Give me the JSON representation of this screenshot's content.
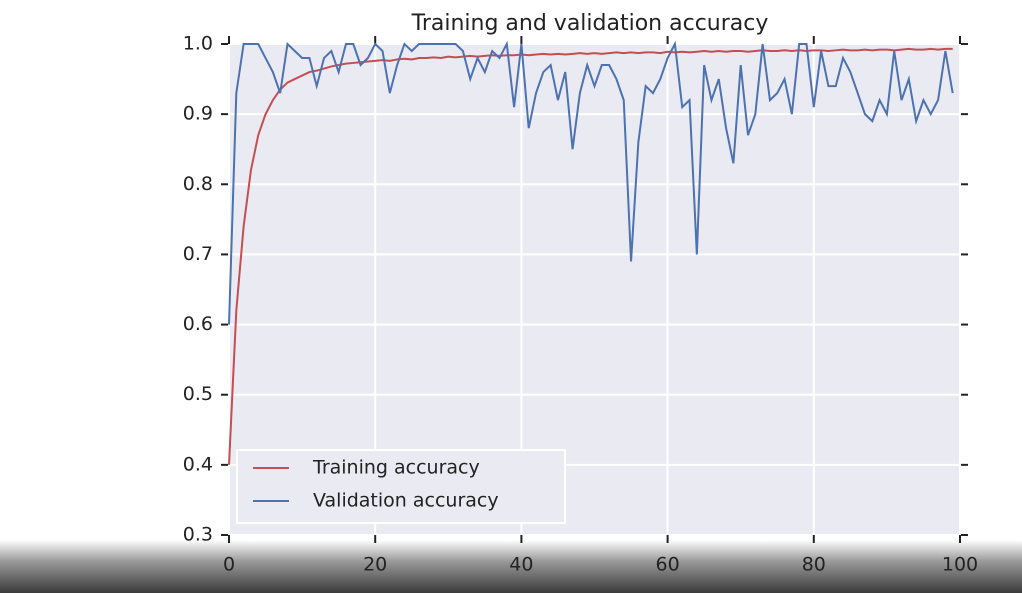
{
  "chart_data": {
    "type": "line",
    "title": "Training and validation accuracy",
    "x": [
      0,
      1,
      2,
      3,
      4,
      5,
      6,
      7,
      8,
      9,
      10,
      11,
      12,
      13,
      14,
      15,
      16,
      17,
      18,
      19,
      20,
      21,
      22,
      23,
      24,
      25,
      26,
      27,
      28,
      29,
      30,
      31,
      32,
      33,
      34,
      35,
      36,
      37,
      38,
      39,
      40,
      41,
      42,
      43,
      44,
      45,
      46,
      47,
      48,
      49,
      50,
      51,
      52,
      53,
      54,
      55,
      56,
      57,
      58,
      59,
      60,
      61,
      62,
      63,
      64,
      65,
      66,
      67,
      68,
      69,
      70,
      71,
      72,
      73,
      74,
      75,
      76,
      77,
      78,
      79,
      80,
      81,
      82,
      83,
      84,
      85,
      86,
      87,
      88,
      89,
      90,
      91,
      92,
      93,
      94,
      95,
      96,
      97,
      98,
      99
    ],
    "series": [
      {
        "name": "Training accuracy",
        "color": "#c44e52",
        "values": [
          0.4,
          0.62,
          0.74,
          0.82,
          0.87,
          0.9,
          0.92,
          0.935,
          0.945,
          0.95,
          0.955,
          0.96,
          0.962,
          0.965,
          0.968,
          0.97,
          0.972,
          0.973,
          0.974,
          0.975,
          0.976,
          0.977,
          0.976,
          0.978,
          0.979,
          0.978,
          0.98,
          0.98,
          0.981,
          0.98,
          0.982,
          0.981,
          0.982,
          0.983,
          0.982,
          0.983,
          0.984,
          0.983,
          0.984,
          0.984,
          0.985,
          0.984,
          0.985,
          0.986,
          0.985,
          0.986,
          0.985,
          0.986,
          0.987,
          0.986,
          0.987,
          0.986,
          0.987,
          0.988,
          0.987,
          0.988,
          0.987,
          0.988,
          0.988,
          0.987,
          0.989,
          0.988,
          0.989,
          0.988,
          0.989,
          0.99,
          0.989,
          0.99,
          0.989,
          0.99,
          0.99,
          0.989,
          0.99,
          0.991,
          0.99,
          0.99,
          0.991,
          0.99,
          0.991,
          0.99,
          0.991,
          0.991,
          0.99,
          0.991,
          0.992,
          0.991,
          0.991,
          0.992,
          0.991,
          0.992,
          0.992,
          0.991,
          0.992,
          0.993,
          0.992,
          0.992,
          0.993,
          0.992,
          0.993,
          0.993
        ]
      },
      {
        "name": "Validation accuracy",
        "color": "#4c72b0",
        "values": [
          0.6,
          0.93,
          1.0,
          1.0,
          1.0,
          0.98,
          0.96,
          0.93,
          1.0,
          0.99,
          0.98,
          0.98,
          0.94,
          0.98,
          0.99,
          0.96,
          1.0,
          1.0,
          0.97,
          0.98,
          1.0,
          0.99,
          0.93,
          0.97,
          1.0,
          0.99,
          1.0,
          1.0,
          1.0,
          1.0,
          1.0,
          1.0,
          0.99,
          0.95,
          0.98,
          0.96,
          0.99,
          0.98,
          1.0,
          0.91,
          1.0,
          0.88,
          0.93,
          0.96,
          0.97,
          0.92,
          0.96,
          0.85,
          0.93,
          0.97,
          0.94,
          0.97,
          0.97,
          0.95,
          0.92,
          0.69,
          0.86,
          0.94,
          0.93,
          0.95,
          0.98,
          1.0,
          0.91,
          0.92,
          0.7,
          0.97,
          0.92,
          0.95,
          0.88,
          0.83,
          0.97,
          0.87,
          0.9,
          1.0,
          0.92,
          0.93,
          0.95,
          0.9,
          1.0,
          1.0,
          0.91,
          0.99,
          0.94,
          0.94,
          0.98,
          0.96,
          0.93,
          0.9,
          0.89,
          0.92,
          0.9,
          0.99,
          0.92,
          0.95,
          0.89,
          0.92,
          0.9,
          0.92,
          0.99,
          0.93
        ]
      }
    ],
    "xlim": [
      0,
      100
    ],
    "xticks": [
      0,
      20,
      40,
      60,
      80,
      100
    ],
    "ylim": [
      0.3,
      1.0
    ],
    "yticks": [
      0.3,
      0.4,
      0.5,
      0.6,
      0.7,
      0.8,
      0.9,
      {
        "value": 1,
        "label": "1.0"
      }
    ],
    "grid": true,
    "legend": "lower left"
  }
}
